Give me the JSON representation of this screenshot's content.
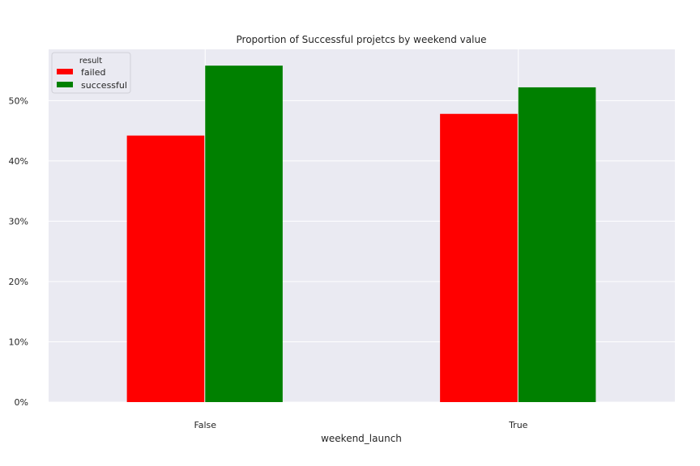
{
  "chart_data": {
    "type": "bar",
    "title": "Proportion of Successful projetcs by weekend value",
    "xlabel": "weekend_launch",
    "ylabel": "",
    "categories": [
      "False",
      "True"
    ],
    "series": [
      {
        "name": "failed",
        "values": [
          0.442,
          0.478
        ],
        "color": "#ff0000"
      },
      {
        "name": "successful",
        "values": [
          0.558,
          0.522
        ],
        "color": "#008000"
      }
    ],
    "ylim": [
      0,
      0.585
    ],
    "yticks": [
      0,
      0.1,
      0.2,
      0.3,
      0.4,
      0.5
    ],
    "ytick_labels": [
      "0%",
      "10%",
      "20%",
      "30%",
      "40%",
      "50%"
    ],
    "grid": true,
    "background": "#eaeaf2",
    "legend": {
      "title": "result",
      "placement": "top-left"
    }
  }
}
